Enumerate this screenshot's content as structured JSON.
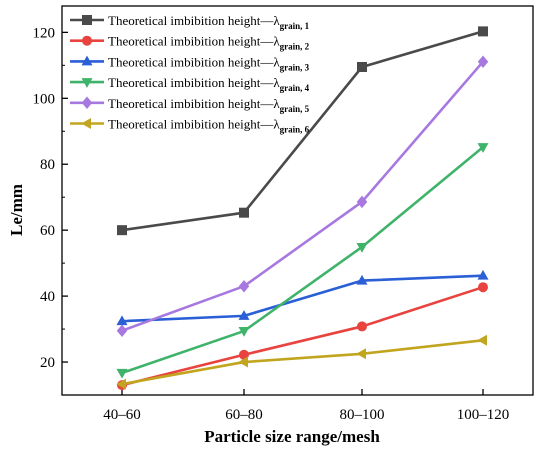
{
  "chart_data": {
    "type": "line",
    "xlabel": "Particle size range/mesh",
    "ylabel": "Le/mm",
    "categories": [
      "40–60",
      "60–80",
      "80–100",
      "100–120"
    ],
    "yticks": [
      20,
      40,
      60,
      80,
      100,
      120
    ],
    "ylim": [
      10,
      128
    ],
    "grid": false,
    "legend_position": "top-left",
    "series": [
      {
        "name": "Theoretical imbibition height—λ",
        "subscript": "grain, 1",
        "color": "#4a4a4a",
        "marker": "square",
        "values": [
          60,
          65.3,
          109.5,
          120.3
        ]
      },
      {
        "name": "Theoretical imbibition height—λ",
        "subscript": "grain, 2",
        "color": "#e8433f",
        "marker": "circle",
        "values": [
          13,
          22.2,
          30.8,
          42.7
        ]
      },
      {
        "name": "Theoretical imbibition height—λ",
        "subscript": "grain, 3",
        "color": "#2a5fd6",
        "marker": "triangle-up",
        "values": [
          32.4,
          34,
          44.7,
          46.2
        ]
      },
      {
        "name": "Theoretical imbibition height—λ",
        "subscript": "grain, 4",
        "color": "#3fb36a",
        "marker": "triangle-down",
        "values": [
          16.7,
          29.4,
          54.9,
          85.2
        ]
      },
      {
        "name": "Theoretical imbibition height—λ",
        "subscript": "grain, 5",
        "color": "#a779e0",
        "marker": "diamond",
        "values": [
          29.5,
          43,
          68.6,
          111.1
        ]
      },
      {
        "name": "Theoretical imbibition height—λ",
        "subscript": "grain, 6",
        "color": "#c2a51e",
        "marker": "triangle-left",
        "values": [
          13.3,
          20,
          22.5,
          26.6
        ]
      }
    ]
  }
}
